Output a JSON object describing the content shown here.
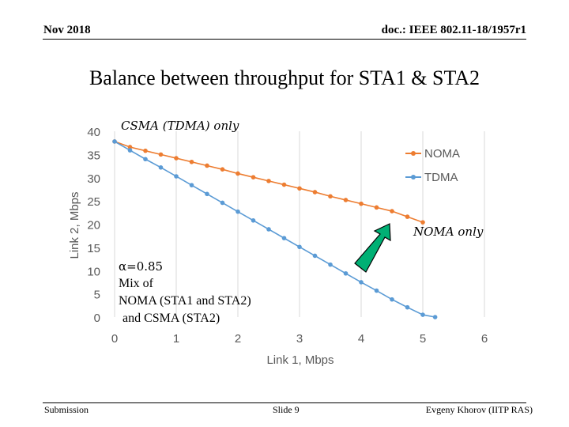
{
  "header": {
    "date": "Nov 2018",
    "doc": "doc.: IEEE 802.11-18/1957r1"
  },
  "title": "Balance between throughput for STA1 & STA2",
  "footer": {
    "left": "Submission",
    "center": "Slide 9",
    "right": "Evgeny Khorov (IITP RAS)"
  },
  "colors": {
    "noma": "#ED7D31",
    "tdma": "#5B9BD5",
    "arrow": "#00B074"
  },
  "chart_data": {
    "type": "line",
    "title": "",
    "xlabel": "Link 1, Mbps",
    "ylabel": "Link 2, Mbps",
    "xlim": [
      0,
      6
    ],
    "ylim": [
      0,
      40
    ],
    "xticks": [
      0,
      1,
      2,
      3,
      4,
      5,
      6
    ],
    "yticks": [
      0,
      5,
      10,
      15,
      20,
      25,
      30,
      35,
      40
    ],
    "grid": "vertical",
    "legend": "right",
    "series": [
      {
        "name": "NOMA",
        "x": [
          0,
          0.25,
          0.5,
          0.75,
          1.0,
          1.25,
          1.5,
          1.75,
          2.0,
          2.25,
          2.5,
          2.75,
          3.0,
          3.25,
          3.5,
          3.75,
          4.0,
          4.25,
          4.5,
          4.75,
          5.0
        ],
        "y": [
          37.8,
          36.6,
          35.8,
          35.0,
          34.2,
          33.4,
          32.6,
          31.8,
          30.9,
          30.1,
          29.3,
          28.5,
          27.7,
          26.9,
          26.0,
          25.2,
          24.4,
          23.6,
          22.8,
          21.6,
          20.4
        ]
      },
      {
        "name": "TDMA",
        "x": [
          0,
          0.25,
          0.5,
          0.75,
          1.0,
          1.25,
          1.5,
          1.75,
          2.0,
          2.25,
          2.5,
          2.75,
          3.0,
          3.25,
          3.5,
          3.75,
          4.0,
          4.25,
          4.5,
          4.75,
          5.0,
          5.2
        ],
        "y": [
          37.8,
          35.9,
          34.0,
          32.2,
          30.3,
          28.4,
          26.5,
          24.6,
          22.7,
          20.8,
          18.9,
          17.0,
          15.1,
          13.2,
          11.3,
          9.4,
          7.5,
          5.7,
          3.8,
          2.1,
          0.5,
          0
        ]
      }
    ],
    "annotations": {
      "csma": "CSMA (TDMA) only",
      "noma": "NOMA only",
      "alpha": "α=0.85",
      "mix_lines": [
        "Mix of",
        "NOMA (STA1 and STA2)",
        "and CSMA (STA2)"
      ]
    }
  }
}
